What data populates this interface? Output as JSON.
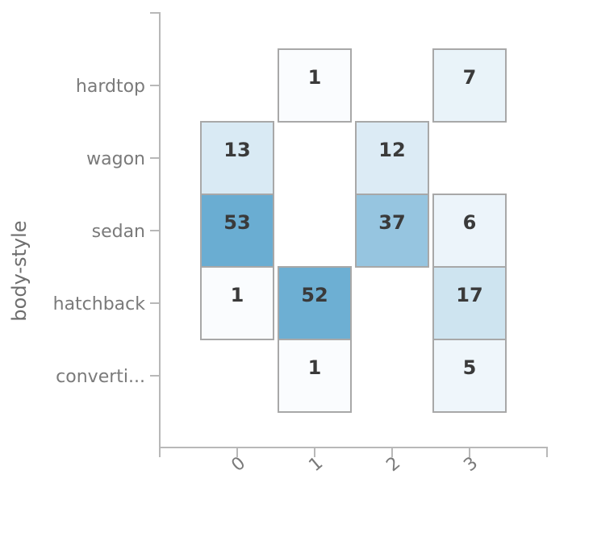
{
  "chart_data": {
    "type": "heatmap",
    "title": "",
    "xlabel": "",
    "ylabel": "body-style",
    "x_categories": [
      "0",
      "1",
      "2",
      "3"
    ],
    "y_categories": [
      "hardtop",
      "wagon",
      "sedan",
      "hatchback",
      "converti..."
    ],
    "cells": [
      {
        "x": "1",
        "y": "hardtop",
        "value": 1
      },
      {
        "x": "3",
        "y": "hardtop",
        "value": 7
      },
      {
        "x": "0",
        "y": "wagon",
        "value": 13
      },
      {
        "x": "2",
        "y": "wagon",
        "value": 12
      },
      {
        "x": "0",
        "y": "sedan",
        "value": 53
      },
      {
        "x": "2",
        "y": "sedan",
        "value": 37
      },
      {
        "x": "3",
        "y": "sedan",
        "value": 6
      },
      {
        "x": "0",
        "y": "hatchback",
        "value": 1
      },
      {
        "x": "1",
        "y": "hatchback",
        "value": 52
      },
      {
        "x": "3",
        "y": "hatchback",
        "value": 17
      },
      {
        "x": "1",
        "y": "converti...",
        "value": 1
      },
      {
        "x": "3",
        "y": "converti...",
        "value": 5
      }
    ],
    "color_scale": {
      "low": "#fafcfe",
      "high": "#6aadd2",
      "min": 1,
      "max": 53
    },
    "grid": false,
    "legend": "none"
  }
}
